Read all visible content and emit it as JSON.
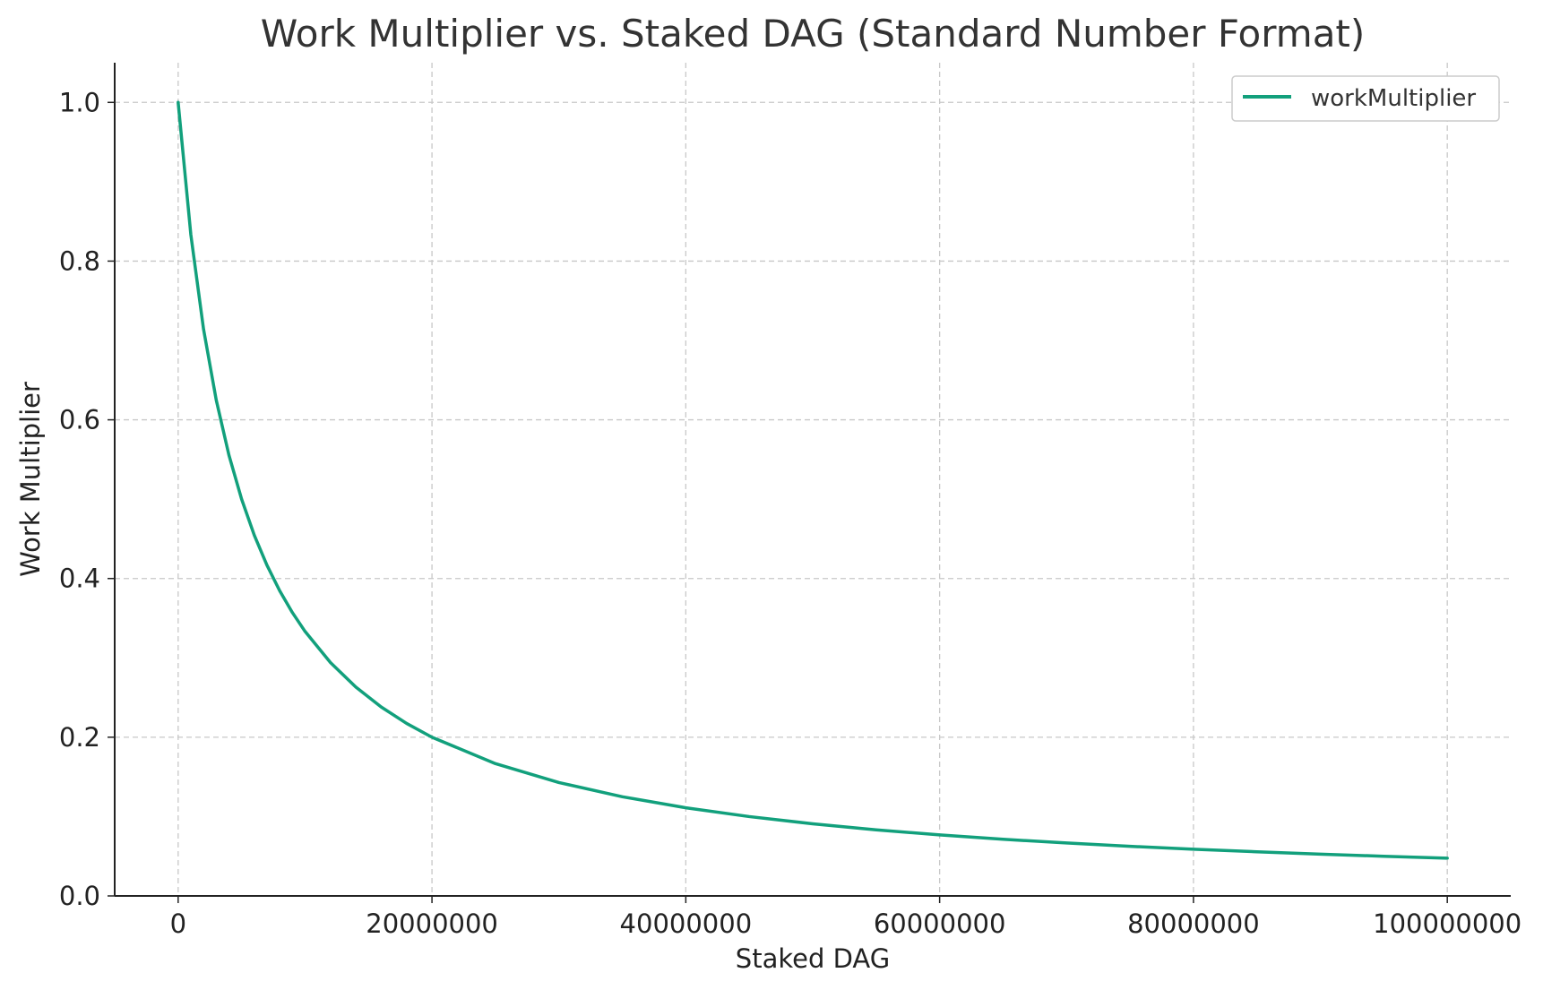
{
  "chart_data": {
    "type": "line",
    "title": "Work Multiplier vs. Staked DAG (Standard Number Format)",
    "xlabel": "Staked DAG",
    "ylabel": "Work Multiplier",
    "xlim": [
      -5000000,
      105000000
    ],
    "ylim": [
      0.0,
      1.05
    ],
    "x_ticks": [
      0,
      20000000,
      40000000,
      60000000,
      80000000,
      100000000
    ],
    "x_tick_labels": [
      "0",
      "20000000",
      "40000000",
      "60000000",
      "80000000",
      "100000000"
    ],
    "y_ticks": [
      0.0,
      0.2,
      0.4,
      0.6,
      0.8,
      1.0
    ],
    "y_tick_labels": [
      "0.0",
      "0.2",
      "0.4",
      "0.6",
      "0.8",
      "1.0"
    ],
    "grid": true,
    "legend_position": "top-right",
    "series": [
      {
        "name": "workMultiplier",
        "color": "#12a07c",
        "formula": "1 / (1 + x / 5000000)",
        "x": [
          0,
          1000000,
          2000000,
          3000000,
          4000000,
          5000000,
          6000000,
          7000000,
          8000000,
          9000000,
          10000000,
          12000000,
          14000000,
          16000000,
          18000000,
          20000000,
          25000000,
          30000000,
          35000000,
          40000000,
          45000000,
          50000000,
          55000000,
          60000000,
          65000000,
          70000000,
          75000000,
          80000000,
          85000000,
          90000000,
          95000000,
          100000000
        ],
        "values": [
          1.0,
          0.8333,
          0.7143,
          0.625,
          0.5556,
          0.5,
          0.4545,
          0.4167,
          0.3846,
          0.3571,
          0.3333,
          0.2941,
          0.2632,
          0.2381,
          0.2174,
          0.2,
          0.1667,
          0.1429,
          0.125,
          0.1111,
          0.1,
          0.0909,
          0.0833,
          0.0769,
          0.0714,
          0.0667,
          0.0625,
          0.0588,
          0.0556,
          0.0526,
          0.05,
          0.0476
        ]
      }
    ]
  }
}
